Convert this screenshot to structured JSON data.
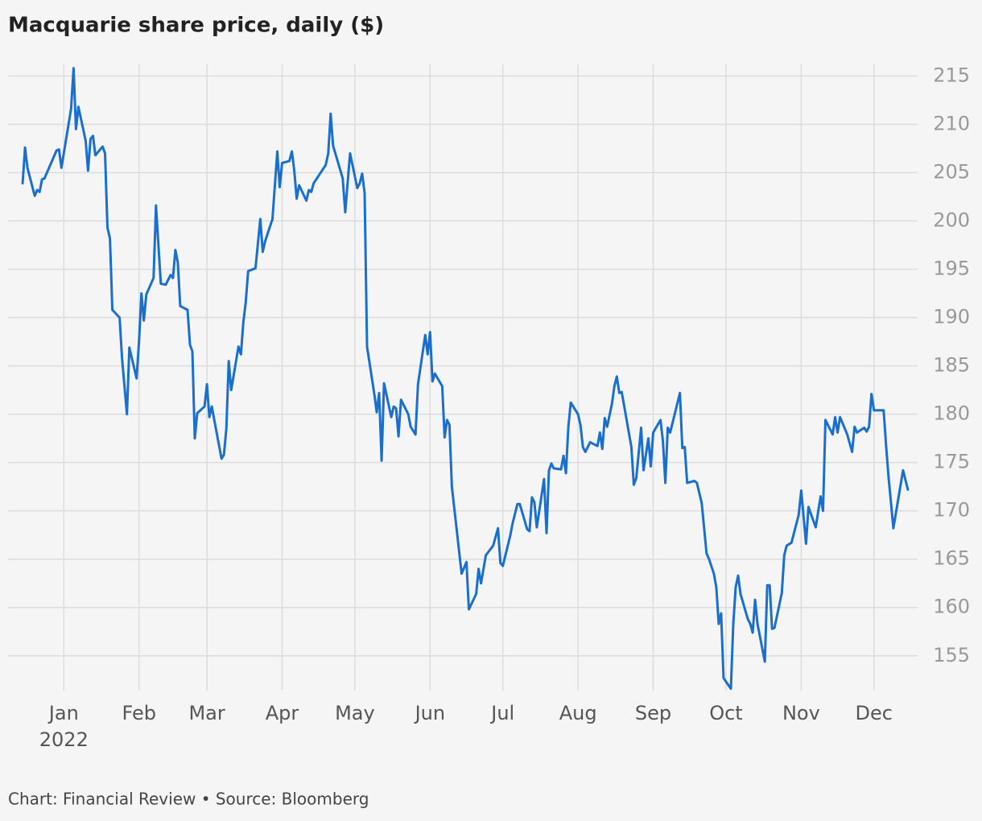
{
  "chart_data": {
    "type": "line",
    "title": "Macquarie share price, daily ($)",
    "source": "Chart: Financial Review • Source: Bloomberg",
    "year_label": "2022",
    "color": "#1a6fcc",
    "grid": true,
    "x": [
      -17,
      -16,
      -15,
      -12,
      -11,
      -10,
      -9,
      -8,
      -3,
      -2,
      -1,
      3,
      4,
      5,
      6,
      9,
      10,
      11,
      12,
      13,
      16,
      17,
      18,
      19,
      20,
      23,
      24,
      26,
      27,
      30,
      31,
      32,
      33,
      34,
      37,
      38,
      40,
      42,
      44,
      45,
      46,
      47,
      48,
      51,
      52,
      53,
      54,
      55,
      58,
      59,
      60,
      61,
      65,
      66,
      67,
      68,
      69,
      72,
      73,
      74,
      75,
      76,
      79,
      81,
      82,
      83,
      86,
      88,
      89,
      90,
      93,
      94,
      95,
      96,
      97,
      100,
      101,
      102,
      103,
      108,
      109,
      110,
      111,
      115,
      116,
      118,
      121,
      122,
      123,
      124,
      125,
      128,
      129,
      130,
      131,
      132,
      135,
      136,
      137,
      138,
      139,
      142,
      143,
      145,
      146,
      149,
      150,
      151,
      152,
      153,
      156,
      157,
      158,
      159,
      160,
      164,
      166,
      167,
      170,
      171,
      172,
      174,
      177,
      179,
      180,
      181,
      184,
      185,
      187,
      188,
      191,
      192,
      193,
      194,
      195,
      198,
      199,
      200,
      201,
      202,
      205,
      206,
      207,
      208,
      209,
      212,
      213,
      214,
      215,
      217,
      220,
      221,
      222,
      223,
      224,
      226,
      227,
      228,
      229,
      230,
      234,
      235,
      236,
      238,
      239,
      241,
      242,
      243,
      246,
      247,
      248,
      249,
      250,
      254,
      255,
      256,
      257,
      260,
      261,
      263,
      265,
      266,
      268,
      269,
      270,
      271,
      272,
      275,
      276,
      277,
      278,
      279,
      282,
      283,
      284,
      285,
      286,
      289,
      290,
      291,
      292,
      293,
      296,
      297,
      298,
      300,
      303,
      304,
      306,
      307,
      310,
      312,
      313,
      314,
      317,
      318,
      319,
      320,
      323,
      325,
      326,
      327,
      330,
      331,
      332,
      333,
      334,
      338,
      339,
      340,
      342,
      346,
      348
    ],
    "values": [
      203.9,
      207.6,
      205.5,
      202.6,
      203.2,
      203.0,
      204.3,
      204.4,
      207.3,
      207.4,
      205.5,
      211.6,
      215.8,
      209.5,
      211.8,
      208.3,
      205.2,
      208.5,
      208.8,
      206.8,
      207.7,
      207.0,
      199.3,
      198.2,
      190.8,
      190.0,
      185.8,
      180.0,
      186.9,
      183.7,
      187.5,
      192.5,
      189.7,
      192.4,
      194.1,
      201.6,
      193.5,
      193.4,
      194.4,
      194.1,
      197.0,
      195.7,
      191.2,
      190.8,
      187.2,
      186.5,
      177.5,
      180.1,
      180.8,
      183.1,
      179.7,
      180.8,
      175.4,
      175.8,
      178.5,
      185.5,
      182.5,
      187.0,
      186.2,
      189.5,
      191.6,
      194.8,
      195.1,
      200.2,
      196.8,
      197.9,
      200.2,
      207.2,
      203.5,
      206.0,
      206.2,
      207.2,
      205.2,
      202.3,
      203.7,
      202.1,
      203.2,
      203.0,
      203.9,
      205.8,
      207.0,
      211.1,
      207.8,
      204.4,
      200.9,
      207.0,
      203.4,
      203.9,
      204.9,
      202.9,
      187.0,
      182.1,
      180.2,
      182.2,
      175.2,
      183.2,
      179.7,
      180.8,
      180.6,
      177.7,
      181.5,
      180.0,
      178.7,
      177.9,
      183.1,
      188.2,
      186.2,
      188.5,
      183.4,
      184.2,
      182.9,
      177.6,
      179.4,
      178.9,
      172.5,
      163.5,
      164.7,
      159.8,
      161.4,
      164.0,
      162.5,
      165.4,
      166.4,
      168.2,
      164.6,
      164.3,
      167.4,
      168.7,
      170.7,
      170.7,
      168.1,
      167.9,
      171.4,
      170.9,
      168.3,
      173.3,
      167.7,
      174.2,
      174.9,
      174.4,
      174.3,
      175.7,
      173.9,
      178.7,
      181.2,
      180.0,
      178.9,
      176.6,
      176.1,
      177.1,
      176.7,
      178.1,
      176.4,
      179.6,
      178.7,
      181.1,
      182.9,
      183.9,
      182.2,
      182.3,
      176.6,
      172.7,
      173.4,
      178.6,
      174.2,
      177.5,
      174.6,
      178.1,
      179.4,
      177.2,
      172.9,
      178.6,
      178.1,
      182.2,
      176.5,
      176.6,
      172.9,
      173.1,
      172.9,
      170.8,
      165.6,
      165.0,
      163.5,
      162.1,
      158.3,
      159.4,
      152.7,
      151.6,
      158.3,
      162.1,
      163.3,
      161.4,
      158.8,
      158.3,
      157.4,
      160.8,
      158.3,
      154.4,
      162.3,
      162.3,
      157.8,
      157.9,
      161.5,
      165.4,
      166.4,
      166.7,
      169.6,
      172.1,
      166.6,
      170.4,
      168.3,
      171.5,
      170.0,
      179.4,
      177.9,
      179.7,
      178.1,
      179.7,
      177.9,
      176.1,
      178.7,
      178.1,
      178.6,
      178.2,
      178.7,
      182.1,
      180.4,
      180.4,
      176.8,
      173.6,
      168.2,
      174.2,
      172.2
    ],
    "xlim": [
      -23,
      352
    ],
    "xticks": [
      {
        "value": 0,
        "label": "Jan"
      },
      {
        "value": 31,
        "label": "Feb"
      },
      {
        "value": 59,
        "label": "Mar"
      },
      {
        "value": 90,
        "label": "Apr"
      },
      {
        "value": 120,
        "label": "May"
      },
      {
        "value": 151,
        "label": "Jun"
      },
      {
        "value": 181,
        "label": "Jul"
      },
      {
        "value": 212,
        "label": "Aug"
      },
      {
        "value": 243,
        "label": "Sep"
      },
      {
        "value": 273,
        "label": "Oct"
      },
      {
        "value": 304,
        "label": "Nov"
      },
      {
        "value": 334,
        "label": "Dec"
      }
    ],
    "ylim": [
      151.4,
      216.2
    ],
    "yticks": [
      155,
      160,
      165,
      170,
      175,
      180,
      185,
      190,
      195,
      200,
      205,
      210,
      215
    ]
  }
}
